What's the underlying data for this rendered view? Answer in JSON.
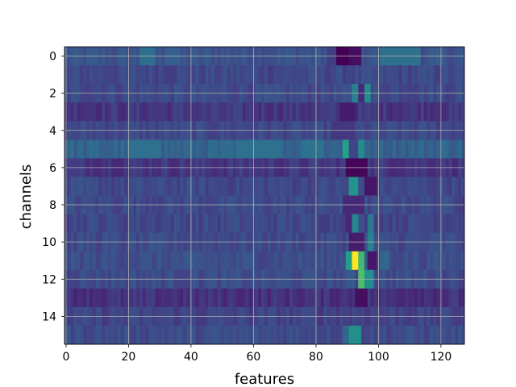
{
  "chart_data": {
    "type": "heatmap",
    "title": "",
    "xlabel": "features",
    "ylabel": "channels",
    "xlim": [
      -0.5,
      127.5
    ],
    "ylim": [
      15.5,
      -0.5
    ],
    "x_ticks": [
      0,
      20,
      40,
      60,
      80,
      100,
      120
    ],
    "y_ticks": [
      0,
      2,
      4,
      6,
      8,
      10,
      12,
      14
    ],
    "grid": true,
    "colormap": "viridis",
    "n_rows": 16,
    "n_cols": 128,
    "row_baseline": [
      0.32,
      0.27,
      0.28,
      0.2,
      0.27,
      0.4,
      0.2,
      0.27,
      0.28,
      0.27,
      0.28,
      0.3,
      0.29,
      0.18,
      0.25,
      0.29
    ],
    "hotspots": [
      {
        "row": 0,
        "col_start": 87,
        "col_end": 92,
        "value": 0.0
      },
      {
        "row": 0,
        "col_start": 91,
        "col_end": 94,
        "value": 0.05
      },
      {
        "row": 0,
        "col_start": 84,
        "col_end": 86,
        "value": 0.22
      },
      {
        "row": 0,
        "col_start": 101,
        "col_end": 113,
        "value": 0.46
      },
      {
        "row": 0,
        "col_start": 24,
        "col_end": 28,
        "value": 0.45
      },
      {
        "row": 0,
        "col_start": 32,
        "col_end": 36,
        "value": 0.38
      },
      {
        "row": 2,
        "col_start": 92,
        "col_end": 93,
        "value": 0.55
      },
      {
        "row": 2,
        "col_start": 94,
        "col_end": 95,
        "value": 0.15
      },
      {
        "row": 2,
        "col_start": 96,
        "col_end": 97,
        "value": 0.6
      },
      {
        "row": 3,
        "col_start": 88,
        "col_end": 92,
        "value": 0.1
      },
      {
        "row": 4,
        "col_start": 86,
        "col_end": 92,
        "value": 0.2
      },
      {
        "row": 5,
        "col_start": 89,
        "col_end": 90,
        "value": 0.72
      },
      {
        "row": 5,
        "col_start": 91,
        "col_end": 93,
        "value": 0.25
      },
      {
        "row": 5,
        "col_start": 94,
        "col_end": 95,
        "value": 0.6
      },
      {
        "row": 5,
        "col_start": 20,
        "col_end": 30,
        "value": 0.46
      },
      {
        "row": 5,
        "col_start": 55,
        "col_end": 68,
        "value": 0.46
      },
      {
        "row": 5,
        "col_start": 76,
        "col_end": 82,
        "value": 0.47
      },
      {
        "row": 6,
        "col_start": 90,
        "col_end": 96,
        "value": 0.02
      },
      {
        "row": 7,
        "col_start": 91,
        "col_end": 93,
        "value": 0.65
      },
      {
        "row": 7,
        "col_start": 94,
        "col_end": 95,
        "value": 0.3
      },
      {
        "row": 7,
        "col_start": 96,
        "col_end": 99,
        "value": 0.08
      },
      {
        "row": 8,
        "col_start": 89,
        "col_end": 95,
        "value": 0.15
      },
      {
        "row": 9,
        "col_start": 90,
        "col_end": 91,
        "value": 0.15
      },
      {
        "row": 9,
        "col_start": 92,
        "col_end": 93,
        "value": 0.58
      },
      {
        "row": 9,
        "col_start": 97,
        "col_end": 98,
        "value": 0.5
      },
      {
        "row": 10,
        "col_start": 91,
        "col_end": 95,
        "value": 0.1
      },
      {
        "row": 10,
        "col_start": 97,
        "col_end": 98,
        "value": 0.55
      },
      {
        "row": 11,
        "col_start": 90,
        "col_end": 91,
        "value": 0.7
      },
      {
        "row": 11,
        "col_start": 92,
        "col_end": 93,
        "value": 1.0
      },
      {
        "row": 11,
        "col_start": 94,
        "col_end": 95,
        "value": 0.8
      },
      {
        "row": 11,
        "col_start": 97,
        "col_end": 99,
        "value": 0.08
      },
      {
        "row": 11,
        "col_start": 101,
        "col_end": 103,
        "value": 0.42
      },
      {
        "row": 12,
        "col_start": 94,
        "col_end": 95,
        "value": 0.82
      },
      {
        "row": 12,
        "col_start": 96,
        "col_end": 98,
        "value": 0.62
      },
      {
        "row": 12,
        "col_start": 91,
        "col_end": 92,
        "value": 0.35
      },
      {
        "row": 13,
        "col_start": 93,
        "col_end": 96,
        "value": 0.05
      },
      {
        "row": 15,
        "col_start": 91,
        "col_end": 94,
        "value": 0.62
      },
      {
        "row": 15,
        "col_start": 89,
        "col_end": 90,
        "value": 0.42
      }
    ]
  }
}
